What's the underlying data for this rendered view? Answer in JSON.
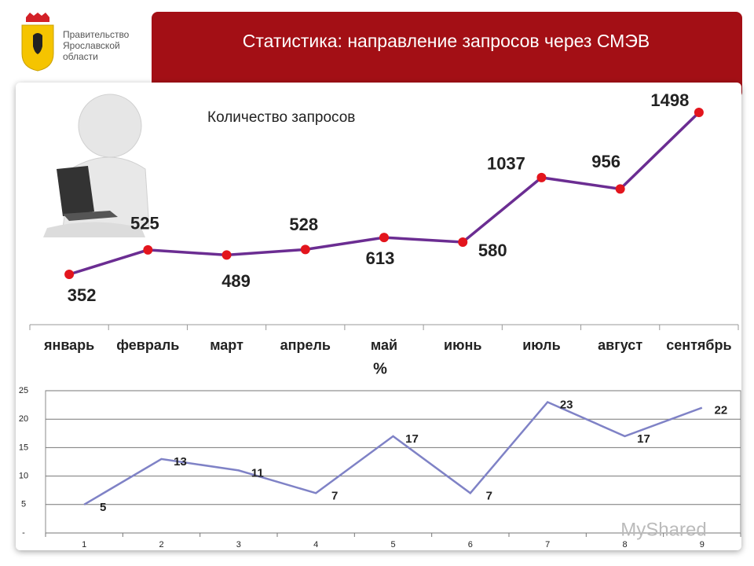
{
  "header": {
    "org": [
      "Правительство",
      "Ярославской",
      "области"
    ],
    "title": "Статистика: направление запросов через СМЭВ"
  },
  "chart_data": [
    {
      "type": "line",
      "subtitle": "Количество запросов",
      "categories": [
        "январь",
        "февраль",
        "март",
        "апрель",
        "май",
        "июнь",
        "июль",
        "август",
        "сентябрь"
      ],
      "values": [
        352,
        525,
        489,
        528,
        613,
        580,
        1037,
        956,
        1498
      ],
      "color": "#6b2d92",
      "marker_color": "#e3151d"
    },
    {
      "type": "line",
      "y_label": "%",
      "categories": [
        "1",
        "2",
        "3",
        "4",
        "5",
        "6",
        "7",
        "8",
        "9"
      ],
      "values": [
        5,
        13,
        11,
        7,
        17,
        7,
        23,
        17,
        22
      ],
      "color": "#7f82c6",
      "ylim": [
        0,
        25
      ],
      "yticks": [
        {
          "value": 0,
          "label": "-"
        },
        5,
        10,
        15,
        20,
        25
      ],
      "grid": true
    }
  ],
  "watermark": "MyShared"
}
